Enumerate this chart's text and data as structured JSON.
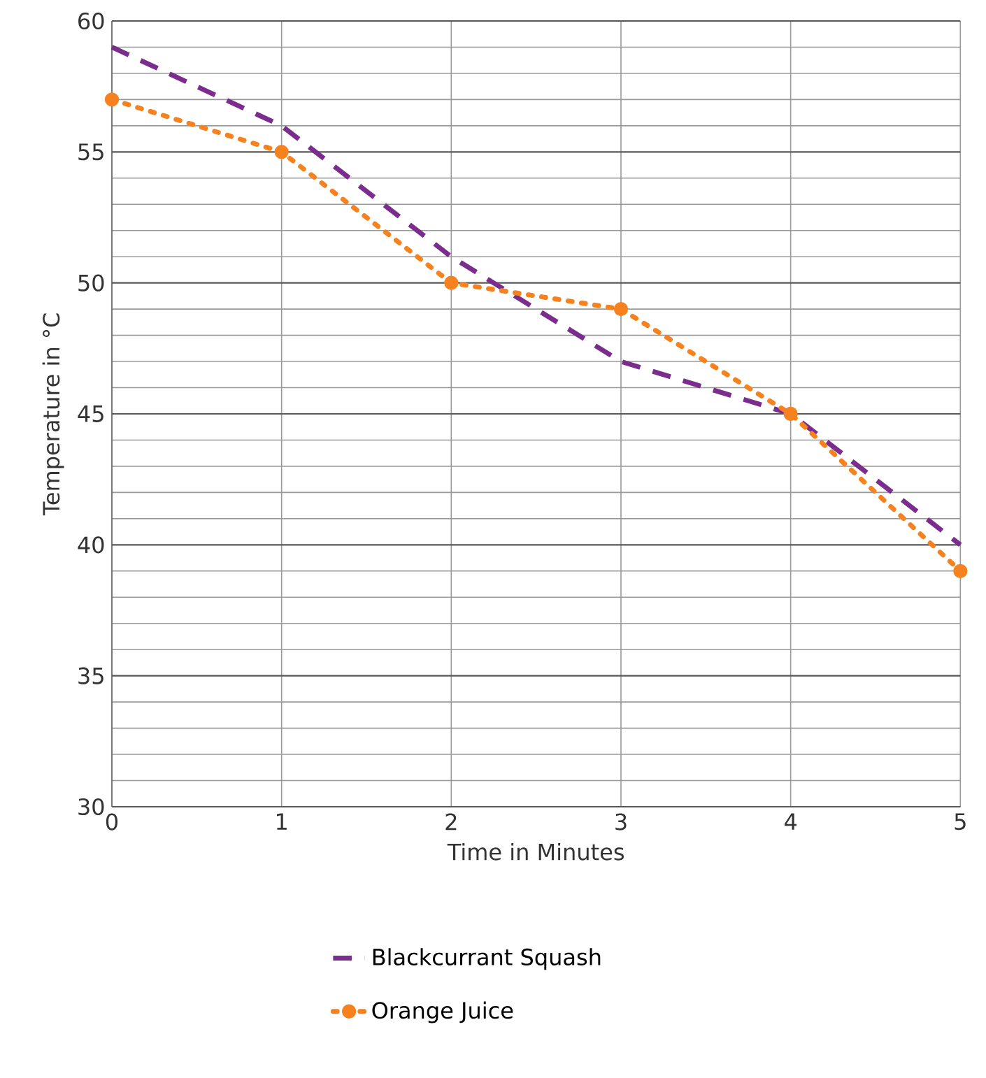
{
  "chart_data": {
    "type": "line",
    "xlabel": "Time in Minutes",
    "ylabel": "Temperature in °C",
    "x": [
      0,
      1,
      2,
      3,
      4,
      5
    ],
    "series": [
      {
        "name": "Blackcurrant Squash",
        "color": "#7b2d8e",
        "values": [
          59,
          56,
          51,
          47,
          45,
          40
        ],
        "line_style": "dashed",
        "marker": "none"
      },
      {
        "name": "Orange Juice",
        "color": "#f5821f",
        "values": [
          57,
          55,
          50,
          49,
          45,
          39
        ],
        "line_style": "dotted",
        "marker": "circle"
      }
    ],
    "xlim": [
      0,
      5
    ],
    "xticks": [
      0,
      1,
      2,
      3,
      4,
      5
    ],
    "ylim": [
      30,
      60
    ],
    "yticks": [
      30,
      {
        "value": 31,
        "label": null
      },
      {
        "value": 32,
        "label": null
      },
      {
        "value": 33,
        "label": null
      },
      {
        "value": 34,
        "label": null
      },
      35,
      {
        "value": 36,
        "label": null
      },
      {
        "value": 37,
        "label": null
      },
      {
        "value": 38,
        "label": null
      },
      {
        "value": 39,
        "label": null
      },
      40,
      {
        "value": 41,
        "label": null
      },
      {
        "value": 42,
        "label": null
      },
      {
        "value": 43,
        "label": null
      },
      {
        "value": 44,
        "label": null
      },
      45,
      {
        "value": 46,
        "label": null
      },
      {
        "value": 47,
        "label": null
      },
      {
        "value": 48,
        "label": null
      },
      {
        "value": 49,
        "label": null
      },
      50,
      {
        "value": 51,
        "label": null
      },
      {
        "value": 52,
        "label": null
      },
      {
        "value": 53,
        "label": null
      },
      {
        "value": 54,
        "label": null
      },
      55,
      {
        "value": 56,
        "label": null
      },
      {
        "value": 57,
        "label": null
      },
      {
        "value": 58,
        "label": null
      },
      {
        "value": 59,
        "label": null
      },
      60
    ],
    "grid": true,
    "legend": "bottom"
  }
}
